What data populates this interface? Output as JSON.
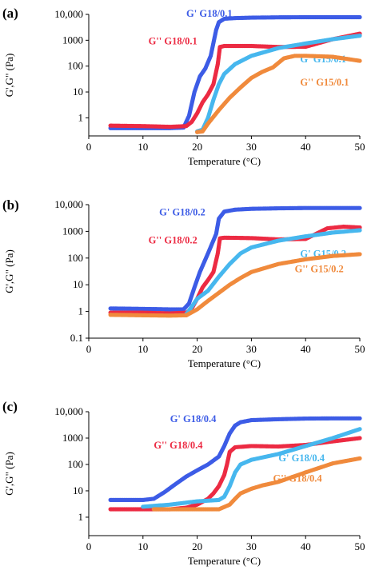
{
  "colors": {
    "blue": "#3d5ce6",
    "red": "#ec2b43",
    "cyan": "#47b7ee",
    "orange": "#f08a3c",
    "axis": "#000000"
  },
  "chart_data": [
    {
      "type": "scatter",
      "panel_label": "(a)",
      "xlabel": "Temperature (°C)",
      "ylabel": "G',G\" (Pa)",
      "x_ticks": [
        "0",
        "10",
        "20",
        "30",
        "40",
        "50"
      ],
      "y_ticks": [
        "1",
        "10",
        "100",
        "1000",
        "10,000"
      ],
      "xlim": [
        0,
        50
      ],
      "ylim": [
        0.2,
        10000
      ],
      "y_scale": "log",
      "grid": false,
      "series": [
        {
          "name": "G' G18/0.1",
          "color": "blue",
          "label_at": [
            18,
            8000
          ],
          "points": [
            [
              4,
              0.4
            ],
            [
              10,
              0.4
            ],
            [
              15,
              0.4
            ],
            [
              17.5,
              0.42
            ],
            [
              18.5,
              1.2
            ],
            [
              19.5,
              10
            ],
            [
              20.5,
              40
            ],
            [
              21.5,
              80
            ],
            [
              22.5,
              250
            ],
            [
              23.5,
              2500
            ],
            [
              24,
              5000
            ],
            [
              25,
              6800
            ],
            [
              27,
              7200
            ],
            [
              30,
              7500
            ],
            [
              35,
              7700
            ],
            [
              40,
              7800
            ],
            [
              45,
              7800
            ],
            [
              50,
              7800
            ]
          ]
        },
        {
          "name": "G'' G18/0.1",
          "color": "red",
          "label_at": [
            11,
            700
          ],
          "points": [
            [
              4,
              0.5
            ],
            [
              10,
              0.48
            ],
            [
              15,
              0.45
            ],
            [
              18,
              0.48
            ],
            [
              19,
              0.7
            ],
            [
              20,
              1.5
            ],
            [
              21,
              4
            ],
            [
              22,
              8
            ],
            [
              23,
              20
            ],
            [
              23.8,
              120
            ],
            [
              24.2,
              550
            ],
            [
              25,
              600
            ],
            [
              30,
              600
            ],
            [
              35,
              550
            ],
            [
              40,
              560
            ],
            [
              45,
              1100
            ],
            [
              50,
              1800
            ]
          ]
        },
        {
          "name": "G' G15/0.1",
          "color": "cyan",
          "label_at": [
            39,
            140
          ],
          "points": [
            [
              20,
              0.3
            ],
            [
              21,
              0.35
            ],
            [
              22,
              1
            ],
            [
              23,
              5
            ],
            [
              24,
              20
            ],
            [
              25,
              50
            ],
            [
              27,
              120
            ],
            [
              30,
              250
            ],
            [
              35,
              500
            ],
            [
              40,
              750
            ],
            [
              45,
              1100
            ],
            [
              50,
              1500
            ]
          ]
        },
        {
          "name": "G'' G15/0.1",
          "color": "orange",
          "label_at": [
            39,
            18
          ],
          "points": [
            [
              20,
              0.28
            ],
            [
              21,
              0.3
            ],
            [
              22,
              0.6
            ],
            [
              24,
              2
            ],
            [
              26,
              6
            ],
            [
              28,
              15
            ],
            [
              30,
              35
            ],
            [
              32,
              60
            ],
            [
              34,
              90
            ],
            [
              36,
              200
            ],
            [
              38,
              250
            ],
            [
              40,
              250
            ],
            [
              45,
              230
            ],
            [
              50,
              160
            ]
          ]
        }
      ]
    },
    {
      "type": "scatter",
      "panel_label": "(b)",
      "xlabel": "Temperature (°C)",
      "ylabel": "G',G\" (Pa)",
      "x_ticks": [
        "0",
        "10",
        "20",
        "30",
        "40",
        "50"
      ],
      "y_ticks": [
        "0.1",
        "1",
        "10",
        "100",
        "1000",
        "10,000"
      ],
      "xlim": [
        0,
        50
      ],
      "ylim": [
        0.1,
        10000
      ],
      "y_scale": "log",
      "grid": false,
      "series": [
        {
          "name": "G' G18/0.2",
          "color": "blue",
          "label_at": [
            13,
            4000
          ],
          "points": [
            [
              4,
              1.3
            ],
            [
              10,
              1.25
            ],
            [
              15,
              1.2
            ],
            [
              17.5,
              1.2
            ],
            [
              18.5,
              2
            ],
            [
              19.5,
              8
            ],
            [
              20.5,
              30
            ],
            [
              22,
              150
            ],
            [
              23.5,
              800
            ],
            [
              24,
              3000
            ],
            [
              25,
              5500
            ],
            [
              27,
              6500
            ],
            [
              30,
              7000
            ],
            [
              35,
              7300
            ],
            [
              40,
              7500
            ],
            [
              45,
              7500
            ],
            [
              50,
              7500
            ]
          ]
        },
        {
          "name": "G'' G18/0.2",
          "color": "red",
          "label_at": [
            11,
            350
          ],
          "points": [
            [
              4,
              0.9
            ],
            [
              10,
              0.9
            ],
            [
              15,
              0.85
            ],
            [
              18,
              0.9
            ],
            [
              19,
              1.3
            ],
            [
              20,
              3
            ],
            [
              21,
              8
            ],
            [
              22,
              15
            ],
            [
              23,
              30
            ],
            [
              23.8,
              150
            ],
            [
              24.2,
              550
            ],
            [
              25,
              580
            ],
            [
              30,
              560
            ],
            [
              35,
              500
            ],
            [
              40,
              520
            ],
            [
              44,
              1300
            ],
            [
              47,
              1500
            ],
            [
              50,
              1400
            ]
          ]
        },
        {
          "name": "G' G15/0.2",
          "color": "cyan",
          "label_at": [
            39,
            110
          ],
          "points": [
            [
              18,
              0.8
            ],
            [
              19,
              1.5
            ],
            [
              20,
              3
            ],
            [
              22,
              6
            ],
            [
              24,
              20
            ],
            [
              26,
              60
            ],
            [
              28,
              150
            ],
            [
              30,
              250
            ],
            [
              35,
              450
            ],
            [
              40,
              650
            ],
            [
              45,
              900
            ],
            [
              50,
              1100
            ]
          ]
        },
        {
          "name": "G'' G15/0.2",
          "color": "orange",
          "label_at": [
            38,
            30
          ],
          "points": [
            [
              4,
              0.75
            ],
            [
              10,
              0.72
            ],
            [
              15,
              0.7
            ],
            [
              18,
              0.72
            ],
            [
              20,
              1.2
            ],
            [
              22,
              2.5
            ],
            [
              24,
              5
            ],
            [
              26,
              10
            ],
            [
              28,
              18
            ],
            [
              30,
              30
            ],
            [
              35,
              60
            ],
            [
              40,
              90
            ],
            [
              45,
              120
            ],
            [
              50,
              140
            ]
          ]
        }
      ]
    },
    {
      "type": "scatter",
      "panel_label": "(c)",
      "xlabel": "Temperature (°C)",
      "ylabel": "G',G\" (Pa)",
      "x_ticks": [
        "0",
        "10",
        "20",
        "30",
        "40",
        "50"
      ],
      "y_ticks": [
        "1",
        "10",
        "100",
        "1000",
        "10,000"
      ],
      "xlim": [
        0,
        50
      ],
      "ylim": [
        0.2,
        10000
      ],
      "y_scale": "log",
      "grid": false,
      "series": [
        {
          "name": "G' G18/0.4",
          "color": "blue",
          "label_at": [
            15,
            4000
          ],
          "points": [
            [
              4,
              4.5
            ],
            [
              10,
              4.5
            ],
            [
              12,
              5
            ],
            [
              14,
              9
            ],
            [
              16,
              18
            ],
            [
              18,
              35
            ],
            [
              20,
              60
            ],
            [
              22,
              100
            ],
            [
              24,
              200
            ],
            [
              25,
              500
            ],
            [
              26,
              1500
            ],
            [
              27,
              3000
            ],
            [
              28,
              4000
            ],
            [
              30,
              4800
            ],
            [
              35,
              5200
            ],
            [
              40,
              5500
            ],
            [
              45,
              5600
            ],
            [
              50,
              5600
            ]
          ]
        },
        {
          "name": "G'' G18/0.4",
          "color": "red",
          "label_at": [
            12,
            400
          ],
          "points": [
            [
              4,
              2
            ],
            [
              10,
              2
            ],
            [
              15,
              2
            ],
            [
              18,
              2.3
            ],
            [
              20,
              3
            ],
            [
              22,
              5
            ],
            [
              23,
              8
            ],
            [
              24,
              15
            ],
            [
              25,
              40
            ],
            [
              25.5,
              100
            ],
            [
              26,
              300
            ],
            [
              27,
              450
            ],
            [
              30,
              500
            ],
            [
              35,
              480
            ],
            [
              40,
              550
            ],
            [
              45,
              750
            ],
            [
              50,
              1000
            ]
          ]
        },
        {
          "name": "G' G18/0.4",
          "color": "cyan",
          "label_at": [
            35,
            130
          ],
          "points": [
            [
              10,
              2.5
            ],
            [
              15,
              3
            ],
            [
              20,
              4
            ],
            [
              24,
              4.5
            ],
            [
              25,
              6
            ],
            [
              26,
              15
            ],
            [
              27,
              50
            ],
            [
              28,
              100
            ],
            [
              30,
              150
            ],
            [
              35,
              250
            ],
            [
              40,
              500
            ],
            [
              45,
              1000
            ],
            [
              50,
              2200
            ]
          ]
        },
        {
          "name": "G'' G18/0.4",
          "color": "orange",
          "label_at": [
            34,
            22
          ],
          "points": [
            [
              12,
              2
            ],
            [
              15,
              2
            ],
            [
              20,
              2
            ],
            [
              24,
              2
            ],
            [
              26,
              3
            ],
            [
              27,
              5
            ],
            [
              28,
              8
            ],
            [
              30,
              12
            ],
            [
              32,
              16
            ],
            [
              35,
              22
            ],
            [
              40,
              50
            ],
            [
              45,
              110
            ],
            [
              50,
              170
            ]
          ]
        }
      ]
    }
  ]
}
